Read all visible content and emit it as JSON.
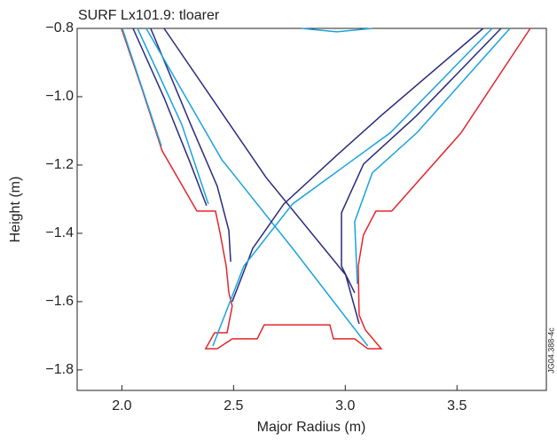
{
  "chart_data": {
    "type": "line",
    "title": "SURF Lx101.9: tloarer",
    "x_label": "Major Radius (m)",
    "y_label": "Height (m)",
    "side_label": "JG04.388-4c",
    "xlim": [
      1.8,
      3.9
    ],
    "ylim": [
      -1.86,
      -0.8
    ],
    "xticks": [
      {
        "value": 2,
        "label": "2.0"
      },
      2.5,
      {
        "value": 3,
        "label": "3.0"
      },
      3.5
    ],
    "yticks": [
      {
        "value": -0.8,
        "label": "−0.8"
      },
      {
        "value": -1.0,
        "label": "−1.0"
      },
      {
        "value": -1.2,
        "label": "−1.2"
      },
      {
        "value": -1.4,
        "label": "−1.4"
      },
      {
        "value": -1.6,
        "label": "−1.6"
      },
      {
        "value": -1.8,
        "label": "−1.8"
      }
    ],
    "series": [
      {
        "color": "#e3262d",
        "x": [
          1.998,
          2.09,
          2.18,
          2.336,
          2.419,
          2.439,
          2.467,
          2.479,
          2.494,
          2.471,
          2.415,
          2.375,
          2.427,
          2.494,
          2.606,
          2.637,
          2.931,
          2.947,
          3.042,
          3.101,
          3.161,
          3.09,
          3.062,
          3.058,
          3.081,
          3.137,
          3.208,
          3.518,
          3.828
        ],
        "values": [
          -0.8,
          -0.977,
          -1.158,
          -1.335,
          -1.335,
          -1.397,
          -1.496,
          -1.574,
          -1.613,
          -1.691,
          -1.691,
          -1.738,
          -1.738,
          -1.709,
          -1.709,
          -1.668,
          -1.668,
          -1.709,
          -1.709,
          -1.738,
          -1.738,
          -1.683,
          -1.639,
          -1.496,
          -1.405,
          -1.335,
          -1.335,
          -1.106,
          -0.8
        ]
      },
      {
        "color": "#2a2a7c",
        "x": [
          2.05,
          2.189,
          2.308,
          2.379
        ],
        "values": [
          -0.8,
          -1.003,
          -1.197,
          -1.319
        ]
      },
      {
        "color": "#2a2a7c",
        "x": [
          2.129,
          2.308,
          2.427,
          2.479,
          2.487
        ],
        "values": [
          -0.8,
          -1.081,
          -1.262,
          -1.392,
          -1.483
        ]
      },
      {
        "color": "#2a2a7c",
        "x": [
          2.189,
          2.645,
          3.002,
          3.062
        ],
        "values": [
          -0.8,
          -1.236,
          -1.522,
          -1.665
        ]
      },
      {
        "color": "#1aa3dc",
        "x": [
          2.109,
          2.447,
          2.764,
          3.101
        ],
        "values": [
          -0.8,
          -1.184,
          -1.444,
          -1.73
        ]
      },
      {
        "color": "#1aa3dc",
        "x": [
          2.002,
          2.177
        ],
        "values": [
          -0.8,
          -1.145
        ]
      },
      {
        "color": "#1aa3dc",
        "x": [
          2.07,
          2.268,
          2.387
        ],
        "values": [
          -0.8,
          -1.081,
          -1.314
        ]
      },
      {
        "color": "#1aa3dc",
        "x": [
          2.804,
          2.963,
          3.121
        ],
        "values": [
          -0.8,
          -0.81,
          -0.8
        ]
      },
      {
        "color": "#2a2a7c",
        "x": [
          3.617,
          3.161,
          2.963,
          2.725,
          2.586,
          2.494
        ],
        "values": [
          -0.8,
          -1.055,
          -1.171,
          -1.314,
          -1.444,
          -1.6
        ]
      },
      {
        "color": "#1aa3dc",
        "x": [
          3.657,
          3.201,
          2.764,
          2.546,
          2.407
        ],
        "values": [
          -0.8,
          -1.106,
          -1.314,
          -1.496,
          -1.73
        ]
      },
      {
        "color": "#2a2a7c",
        "x": [
          3.697,
          3.32,
          3.082,
          2.983,
          2.983,
          3.042
        ],
        "values": [
          -0.8,
          -1.055,
          -1.197,
          -1.34,
          -1.496,
          -1.574
        ]
      },
      {
        "color": "#1aa3dc",
        "x": [
          3.737,
          3.32,
          3.121,
          3.042,
          3.054
        ],
        "values": [
          -0.8,
          -1.106,
          -1.223,
          -1.366,
          -1.548
        ]
      }
    ]
  }
}
